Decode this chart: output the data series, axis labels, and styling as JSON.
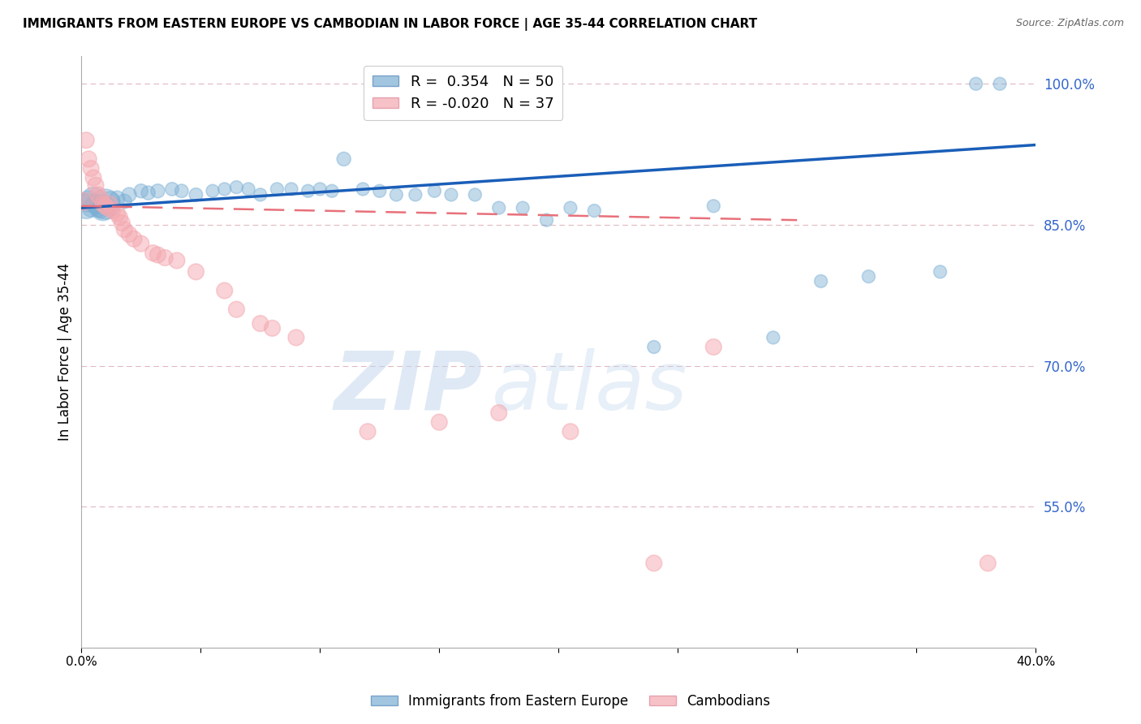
{
  "title": "IMMIGRANTS FROM EASTERN EUROPE VS CAMBODIAN IN LABOR FORCE | AGE 35-44 CORRELATION CHART",
  "source": "Source: ZipAtlas.com",
  "ylabel": "In Labor Force | Age 35-44",
  "xlim": [
    0.0,
    0.4
  ],
  "ylim": [
    0.4,
    1.03
  ],
  "yticks": [
    0.55,
    0.7,
    0.85,
    1.0
  ],
  "ytick_labels": [
    "55.0%",
    "70.0%",
    "85.0%",
    "100.0%"
  ],
  "xticks": [
    0.0,
    0.05,
    0.1,
    0.15,
    0.2,
    0.25,
    0.3,
    0.35,
    0.4
  ],
  "xtick_labels": [
    "0.0%",
    "",
    "",
    "",
    "",
    "",
    "",
    "",
    "40.0%"
  ],
  "blue_r": 0.354,
  "blue_n": 50,
  "pink_r": -0.02,
  "pink_n": 37,
  "blue_color": "#7BAFD4",
  "pink_color": "#F4A8B0",
  "blue_label": "Immigrants from Eastern Europe",
  "pink_label": "Cambodians",
  "watermark_zip": "ZIP",
  "watermark_atlas": "atlas",
  "blue_scatter_x": [
    0.002,
    0.003,
    0.004,
    0.005,
    0.006,
    0.007,
    0.008,
    0.009,
    0.01,
    0.012,
    0.015,
    0.018,
    0.02,
    0.025,
    0.028,
    0.032,
    0.038,
    0.042,
    0.048,
    0.055,
    0.06,
    0.065,
    0.07,
    0.075,
    0.082,
    0.088,
    0.095,
    0.1,
    0.105,
    0.11,
    0.118,
    0.125,
    0.132,
    0.14,
    0.148,
    0.155,
    0.165,
    0.175,
    0.185,
    0.195,
    0.205,
    0.215,
    0.24,
    0.265,
    0.29,
    0.31,
    0.33,
    0.36,
    0.375,
    0.385
  ],
  "blue_scatter_y": [
    0.87,
    0.875,
    0.868,
    0.878,
    0.872,
    0.868,
    0.866,
    0.868,
    0.872,
    0.875,
    0.878,
    0.875,
    0.882,
    0.886,
    0.884,
    0.886,
    0.888,
    0.886,
    0.882,
    0.886,
    0.888,
    0.89,
    0.888,
    0.882,
    0.888,
    0.888,
    0.886,
    0.888,
    0.886,
    0.92,
    0.888,
    0.886,
    0.882,
    0.882,
    0.886,
    0.882,
    0.882,
    0.868,
    0.868,
    0.855,
    0.868,
    0.865,
    0.72,
    0.87,
    0.73,
    0.79,
    0.795,
    0.8,
    1.0,
    1.0
  ],
  "blue_scatter_size": [
    500,
    350,
    250,
    400,
    300,
    250,
    220,
    500,
    700,
    300,
    180,
    160,
    160,
    150,
    150,
    150,
    140,
    140,
    140,
    130,
    130,
    130,
    130,
    130,
    130,
    130,
    130,
    130,
    130,
    150,
    130,
    130,
    130,
    130,
    130,
    130,
    130,
    130,
    130,
    130,
    130,
    130,
    130,
    130,
    130,
    130,
    130,
    130,
    130,
    130
  ],
  "pink_scatter_x": [
    0.001,
    0.002,
    0.003,
    0.004,
    0.005,
    0.006,
    0.007,
    0.008,
    0.009,
    0.01,
    0.011,
    0.012,
    0.013,
    0.015,
    0.016,
    0.017,
    0.018,
    0.02,
    0.022,
    0.025,
    0.03,
    0.032,
    0.035,
    0.04,
    0.048,
    0.06,
    0.065,
    0.075,
    0.08,
    0.09,
    0.12,
    0.15,
    0.175,
    0.205,
    0.24,
    0.265,
    0.38
  ],
  "pink_scatter_y": [
    0.875,
    0.94,
    0.92,
    0.91,
    0.9,
    0.892,
    0.882,
    0.878,
    0.872,
    0.87,
    0.868,
    0.872,
    0.865,
    0.862,
    0.858,
    0.852,
    0.845,
    0.84,
    0.835,
    0.83,
    0.82,
    0.818,
    0.815,
    0.812,
    0.8,
    0.78,
    0.76,
    0.745,
    0.74,
    0.73,
    0.63,
    0.64,
    0.65,
    0.63,
    0.49,
    0.72,
    0.49
  ],
  "pink_scatter_size": [
    250,
    200,
    200,
    200,
    200,
    200,
    200,
    200,
    200,
    200,
    200,
    200,
    200,
    200,
    200,
    200,
    200,
    200,
    200,
    200,
    200,
    200,
    200,
    200,
    200,
    200,
    200,
    200,
    200,
    200,
    200,
    200,
    200,
    200,
    200,
    200,
    200
  ]
}
